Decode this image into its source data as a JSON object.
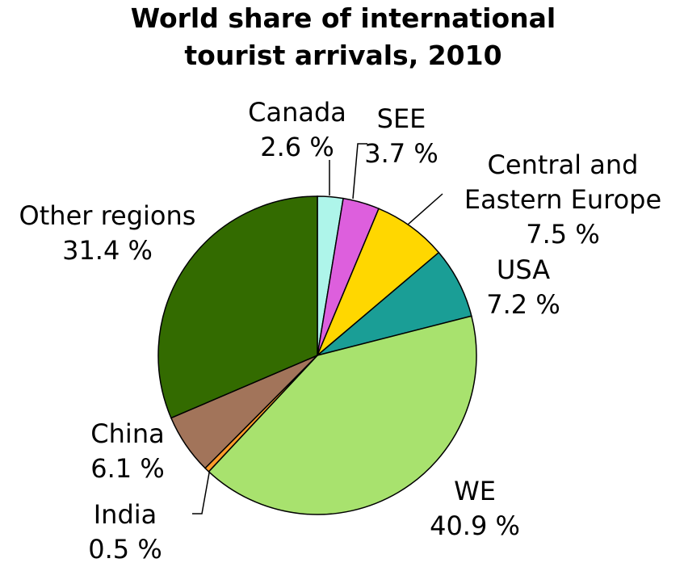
{
  "chart_data": {
    "type": "pie",
    "title": "World share of international tourist arrivals, 2010",
    "categories": [
      "Canada",
      "SEE",
      "Central and Eastern Europe",
      "USA",
      "WE",
      "India",
      "China",
      "Other regions"
    ],
    "values": [
      2.6,
      3.7,
      7.5,
      7.2,
      40.9,
      0.5,
      6.1,
      31.4
    ],
    "value_labels": [
      "2.6 %",
      "3.7 %",
      "7.5 %",
      "7.2 %",
      "40.9 %",
      "0.5 %",
      "6.1 %",
      "31.4 %"
    ],
    "colors": [
      "#aef5ea",
      "#dd5fdd",
      "#ffd700",
      "#1a9e96",
      "#a8e26e",
      "#ff9c2a",
      "#a2745a",
      "#336b00"
    ]
  }
}
